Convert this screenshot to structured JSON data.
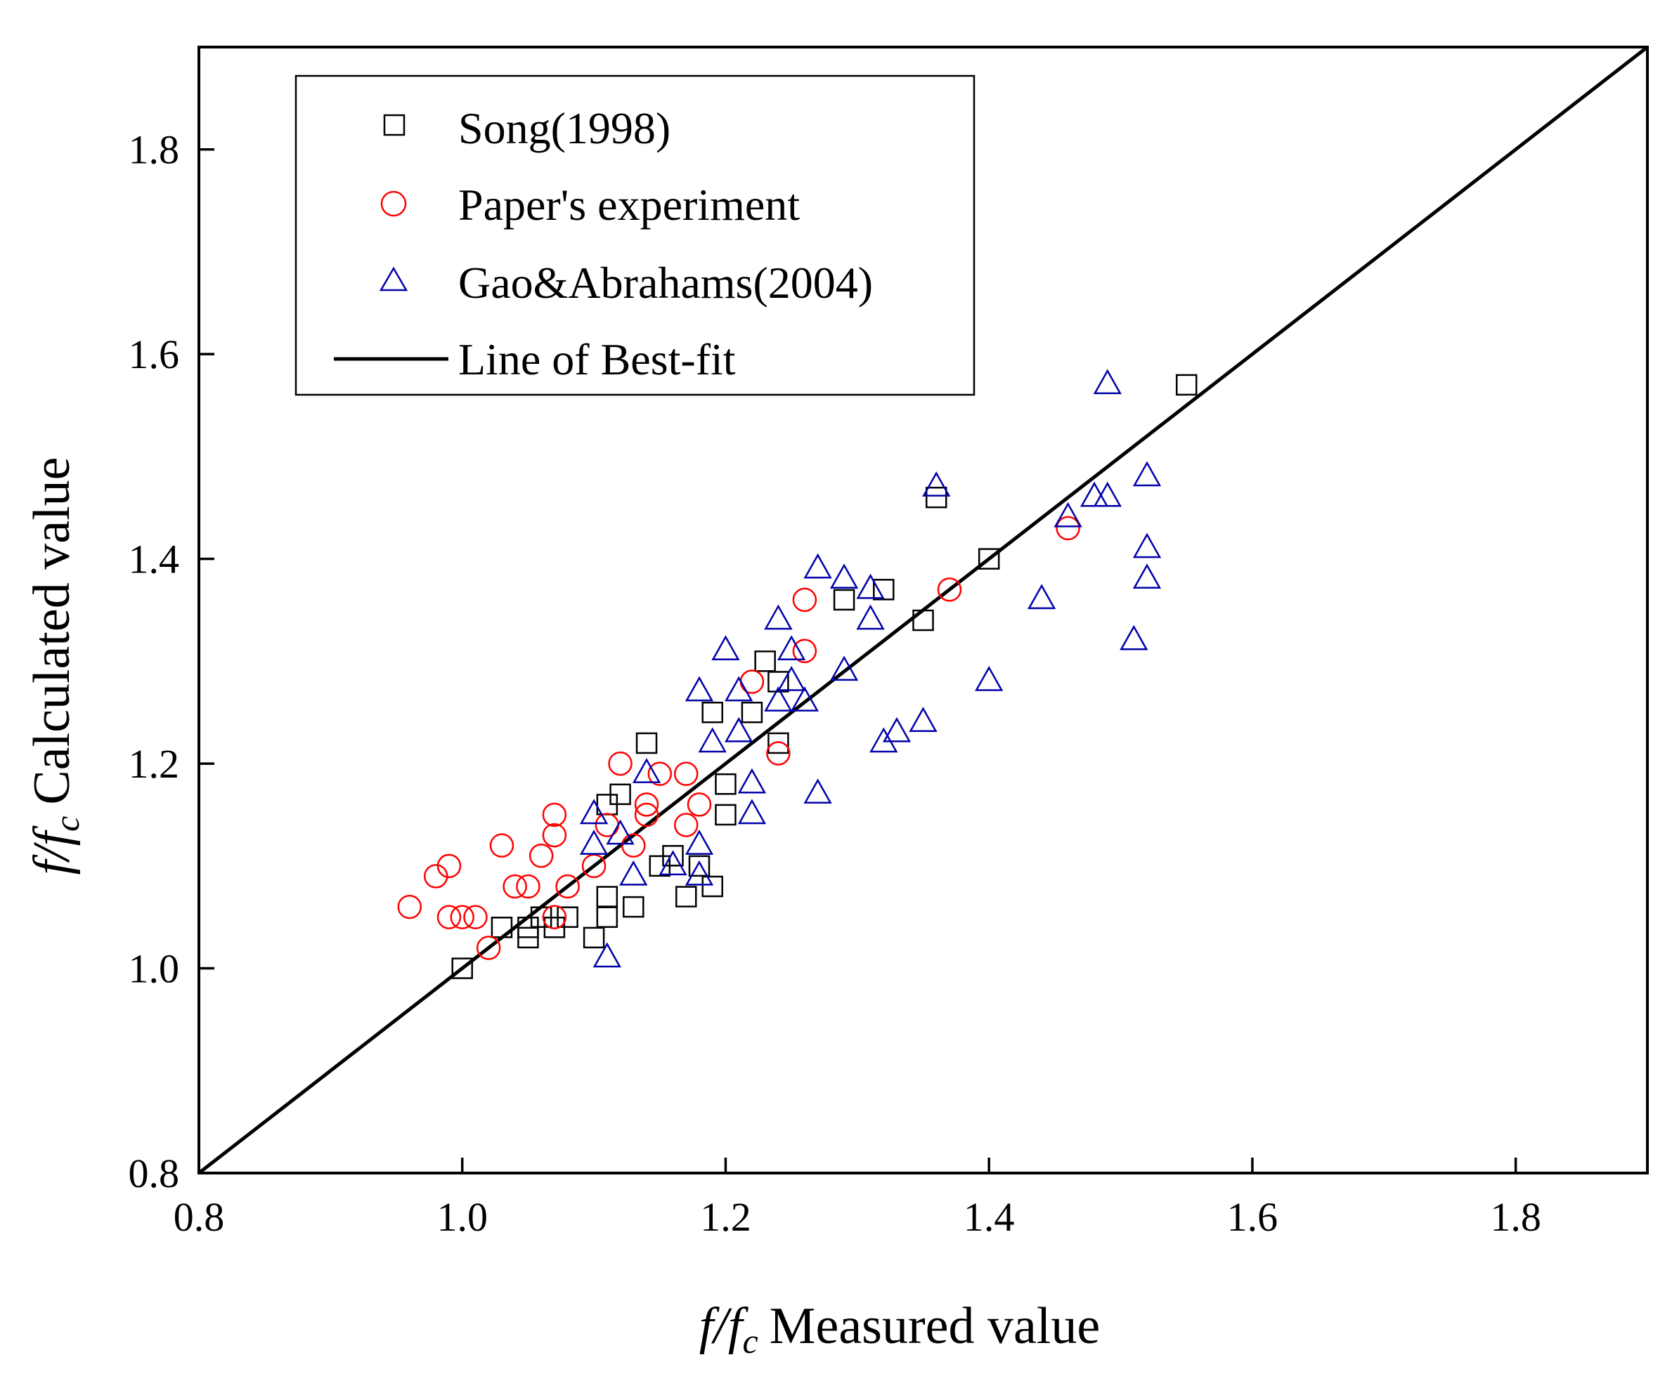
{
  "chart_data": {
    "type": "scatter",
    "xlabel": {
      "var": "f/f",
      "sub": "c",
      "text": "Measured value"
    },
    "ylabel": {
      "var": "f/f",
      "sub": "c",
      "text": "Calculated value"
    },
    "xlim": [
      0.8,
      1.9
    ],
    "ylim": [
      0.8,
      1.9
    ],
    "xticks": [
      0.8,
      1.0,
      1.2,
      1.4,
      1.6,
      1.8
    ],
    "yticks": [
      0.8,
      1.0,
      1.2,
      1.4,
      1.6,
      1.8
    ],
    "tick_labels_x": [
      "0.8",
      "1.0",
      "1.2",
      "1.4",
      "1.6",
      "1.8"
    ],
    "tick_labels_y": [
      "0.8",
      "1.0",
      "1.2",
      "1.4",
      "1.6",
      "1.8"
    ],
    "legend_position": "top-left",
    "line": {
      "name": "Line of Best-fit",
      "points": [
        [
          0.8,
          0.8
        ],
        [
          1.9,
          1.9
        ]
      ],
      "color": "#000000"
    },
    "series": [
      {
        "name": "Song(1998)",
        "marker": "square",
        "color": "#000000",
        "points": [
          [
            1.0,
            1.0
          ],
          [
            1.03,
            1.04
          ],
          [
            1.05,
            1.03
          ],
          [
            1.05,
            1.04
          ],
          [
            1.06,
            1.05
          ],
          [
            1.07,
            1.04
          ],
          [
            1.08,
            1.05
          ],
          [
            1.1,
            1.03
          ],
          [
            1.11,
            1.05
          ],
          [
            1.11,
            1.07
          ],
          [
            1.13,
            1.06
          ],
          [
            1.11,
            1.16
          ],
          [
            1.12,
            1.17
          ],
          [
            1.14,
            1.22
          ],
          [
            1.15,
            1.1
          ],
          [
            1.16,
            1.11
          ],
          [
            1.17,
            1.07
          ],
          [
            1.18,
            1.1
          ],
          [
            1.19,
            1.08
          ],
          [
            1.2,
            1.15
          ],
          [
            1.2,
            1.18
          ],
          [
            1.19,
            1.25
          ],
          [
            1.22,
            1.25
          ],
          [
            1.23,
            1.3
          ],
          [
            1.24,
            1.22
          ],
          [
            1.24,
            1.28
          ],
          [
            1.29,
            1.36
          ],
          [
            1.32,
            1.37
          ],
          [
            1.35,
            1.34
          ],
          [
            1.36,
            1.46
          ],
          [
            1.4,
            1.4
          ],
          [
            1.55,
            1.57
          ]
        ]
      },
      {
        "name": "Paper's experiment",
        "marker": "circle",
        "color": "#ff0000",
        "points": [
          [
            0.96,
            1.06
          ],
          [
            0.98,
            1.09
          ],
          [
            0.99,
            1.1
          ],
          [
            0.99,
            1.05
          ],
          [
            1.0,
            1.05
          ],
          [
            1.01,
            1.05
          ],
          [
            1.02,
            1.02
          ],
          [
            1.03,
            1.12
          ],
          [
            1.04,
            1.08
          ],
          [
            1.05,
            1.08
          ],
          [
            1.06,
            1.11
          ],
          [
            1.07,
            1.05
          ],
          [
            1.07,
            1.13
          ],
          [
            1.07,
            1.15
          ],
          [
            1.08,
            1.08
          ],
          [
            1.1,
            1.1
          ],
          [
            1.11,
            1.14
          ],
          [
            1.12,
            1.2
          ],
          [
            1.13,
            1.12
          ],
          [
            1.14,
            1.15
          ],
          [
            1.14,
            1.16
          ],
          [
            1.15,
            1.19
          ],
          [
            1.17,
            1.14
          ],
          [
            1.17,
            1.19
          ],
          [
            1.18,
            1.16
          ],
          [
            1.22,
            1.28
          ],
          [
            1.24,
            1.21
          ],
          [
            1.26,
            1.31
          ],
          [
            1.26,
            1.36
          ],
          [
            1.37,
            1.37
          ],
          [
            1.46,
            1.43
          ]
        ]
      },
      {
        "name": "Gao&Abrahams(2004)",
        "marker": "triangle",
        "color": "#0000aa",
        "points": [
          [
            1.1,
            1.12
          ],
          [
            1.1,
            1.15
          ],
          [
            1.11,
            1.01
          ],
          [
            1.12,
            1.13
          ],
          [
            1.13,
            1.09
          ],
          [
            1.14,
            1.19
          ],
          [
            1.16,
            1.1
          ],
          [
            1.18,
            1.12
          ],
          [
            1.18,
            1.09
          ],
          [
            1.18,
            1.27
          ],
          [
            1.19,
            1.22
          ],
          [
            1.2,
            1.31
          ],
          [
            1.21,
            1.23
          ],
          [
            1.21,
            1.27
          ],
          [
            1.22,
            1.15
          ],
          [
            1.22,
            1.18
          ],
          [
            1.24,
            1.26
          ],
          [
            1.24,
            1.34
          ],
          [
            1.25,
            1.31
          ],
          [
            1.25,
            1.28
          ],
          [
            1.26,
            1.26
          ],
          [
            1.27,
            1.17
          ],
          [
            1.27,
            1.39
          ],
          [
            1.29,
            1.38
          ],
          [
            1.29,
            1.29
          ],
          [
            1.31,
            1.37
          ],
          [
            1.31,
            1.34
          ],
          [
            1.32,
            1.22
          ],
          [
            1.33,
            1.23
          ],
          [
            1.35,
            1.24
          ],
          [
            1.36,
            1.47
          ],
          [
            1.4,
            1.28
          ],
          [
            1.44,
            1.36
          ],
          [
            1.46,
            1.44
          ],
          [
            1.48,
            1.46
          ],
          [
            1.49,
            1.46
          ],
          [
            1.49,
            1.57
          ],
          [
            1.51,
            1.32
          ],
          [
            1.52,
            1.38
          ],
          [
            1.52,
            1.41
          ],
          [
            1.52,
            1.48
          ]
        ]
      }
    ]
  }
}
